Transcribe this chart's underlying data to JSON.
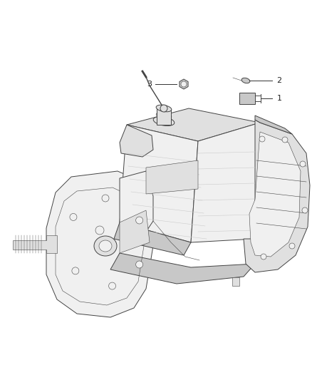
{
  "background_color": "#ffffff",
  "fig_width": 4.38,
  "fig_height": 5.33,
  "dpi": 100,
  "lw_main": 0.7,
  "lw_thin": 0.4,
  "lw_thick": 1.0,
  "outline_color": "#444444",
  "fill_light": "#f0f0f0",
  "fill_mid": "#e0e0e0",
  "fill_dark": "#c8c8c8",
  "fill_darker": "#b0b0b0",
  "callout_label_color": "#222222",
  "callout_line_color": "#444444"
}
